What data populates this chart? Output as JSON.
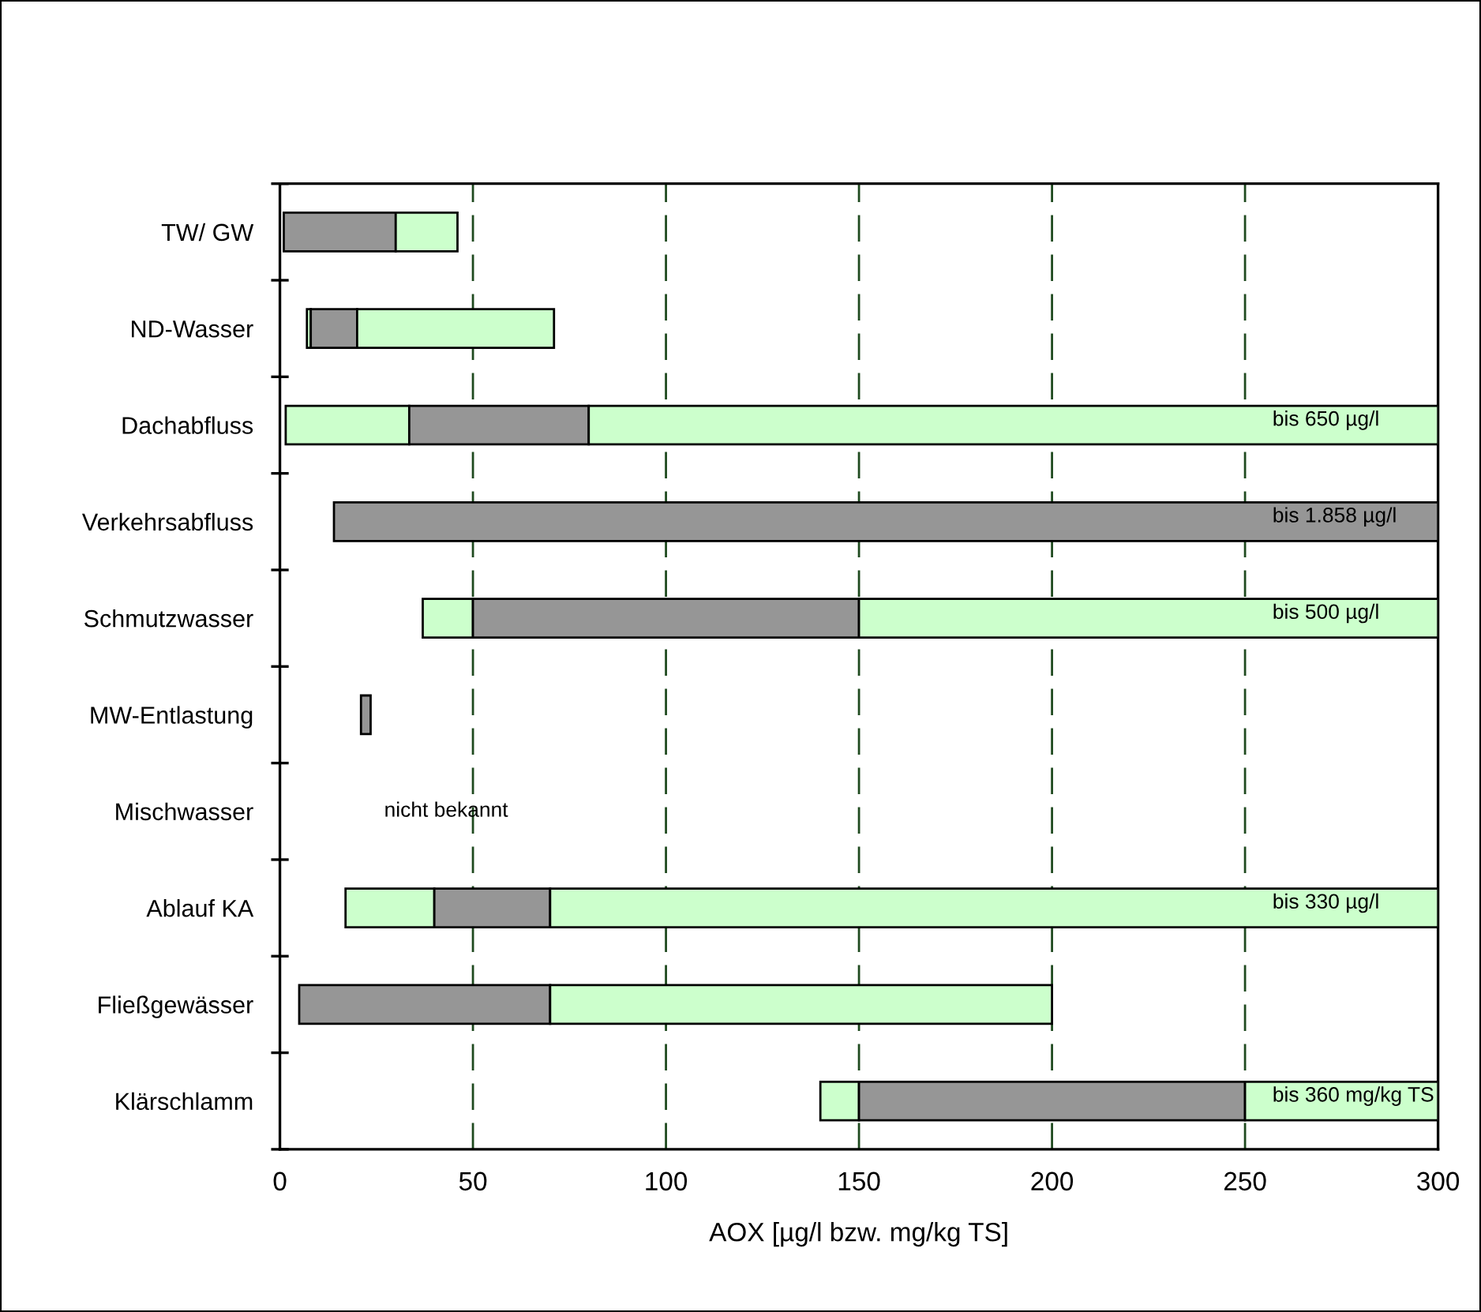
{
  "chart_data": {
    "type": "bar",
    "orientation": "horizontal",
    "xlabel": "AOX [µg/l bzw. mg/kg TS]",
    "categories": [
      "TW/ GW",
      "ND-Wasser",
      "Dachabfluss",
      "Verkehrsabfluss",
      "Schmutzwasser",
      "MW-Entlastung",
      "Mischwasser",
      "Ablauf KA",
      "Fließgewässer",
      "Klärschlamm"
    ],
    "series": [
      {
        "color": "#ccffcc",
        "base": [
          null,
          7,
          1.5,
          null,
          37,
          null,
          null,
          17,
          null,
          140
        ],
        "values": [
          null,
          1,
          32,
          null,
          13,
          null,
          null,
          23,
          null,
          10
        ]
      },
      {
        "color": "#969696",
        "base": [
          1,
          8,
          33.5,
          14,
          50,
          21,
          null,
          40,
          5,
          150
        ],
        "values": [
          29,
          12,
          46.5,
          286,
          100,
          2.5,
          null,
          30,
          65,
          100
        ]
      },
      {
        "color": "#ccffcc",
        "base": [
          30,
          20,
          80,
          null,
          150,
          null,
          null,
          70,
          70,
          250
        ],
        "values": [
          16,
          51,
          220,
          null,
          150,
          null,
          null,
          230,
          130,
          50
        ]
      }
    ],
    "xlim": [
      0,
      300
    ],
    "xticks": [
      0,
      50,
      100,
      150,
      200,
      250,
      300
    ],
    "grid": "x",
    "legend": false,
    "annotations": [
      "bis 650 µg/l",
      "bis 1.858 µg/l",
      "bis 500 µg/l",
      "nicht bekannt",
      "bis 330 µg/l",
      "bis 360 mg/kg TS"
    ]
  }
}
